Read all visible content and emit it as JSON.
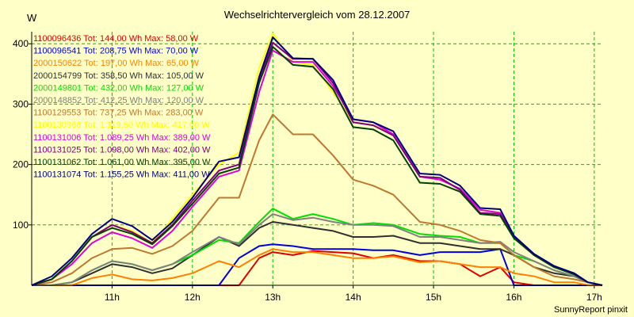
{
  "chart_data": {
    "type": "line",
    "title": "Wechselrichtervergleich vom 28.12.2007",
    "ylabel": "W",
    "footer": "SunnyReport pinxit",
    "ylim": [
      0,
      420
    ],
    "xlim": [
      10.0,
      17.1
    ],
    "x_ticks": [
      {
        "value": 11,
        "label": "11h"
      },
      {
        "value": 12,
        "label": "12h"
      },
      {
        "value": 13,
        "label": "13h"
      },
      {
        "value": 14,
        "label": "14h"
      },
      {
        "value": 15,
        "label": "15h"
      },
      {
        "value": 16,
        "label": "16h"
      },
      {
        "value": 17,
        "label": "17h"
      }
    ],
    "y_ticks": [
      {
        "value": 100,
        "label": "100"
      },
      {
        "value": 200,
        "label": "200"
      },
      {
        "value": 300,
        "label": "300"
      },
      {
        "value": 400,
        "label": "400"
      }
    ],
    "grid": true,
    "legend_position": "top-left",
    "x": [
      10.0,
      10.25,
      10.5,
      10.75,
      11.0,
      11.25,
      11.5,
      11.75,
      12.0,
      12.33,
      12.58,
      12.83,
      13.0,
      13.25,
      13.5,
      13.75,
      14.0,
      14.25,
      14.5,
      14.83,
      15.08,
      15.33,
      15.58,
      15.83,
      16.0,
      16.25,
      16.5,
      16.75,
      16.92,
      17.1
    ],
    "series": [
      {
        "name": "1100096436",
        "label": "1100096436 Tot: 144,00 Wh Max: 58,00 W",
        "color": "#E00000",
        "values": [
          0,
          0,
          0,
          0,
          0,
          0,
          0,
          0,
          0,
          0,
          0,
          45,
          55,
          50,
          57,
          55,
          53,
          45,
          50,
          40,
          40,
          35,
          15,
          30,
          5,
          0,
          0,
          0,
          0,
          0
        ]
      },
      {
        "name": "1100096541",
        "label": "1100096541 Tot: 208,75 Wh Max: 70,00 W",
        "color": "#0000E0",
        "values": [
          0,
          0,
          0,
          0,
          0,
          0,
          0,
          0,
          0,
          0,
          45,
          65,
          68,
          65,
          60,
          60,
          60,
          58,
          58,
          50,
          55,
          55,
          55,
          60,
          0,
          0,
          0,
          0,
          0,
          0
        ]
      },
      {
        "name": "2000150622",
        "label": "2000150622 Tot: 197,00 Wh Max: 65,00 W",
        "color": "#FF8000",
        "values": [
          0,
          0,
          0,
          12,
          18,
          10,
          8,
          12,
          20,
          40,
          30,
          50,
          60,
          55,
          55,
          50,
          45,
          45,
          48,
          38,
          40,
          35,
          30,
          30,
          20,
          15,
          5,
          5,
          0,
          0
        ]
      },
      {
        "name": "2000154799",
        "label": "2000154799 Tot: 358,50 Wh Max: 105,00 W",
        "color": "#303030",
        "values": [
          0,
          0,
          5,
          20,
          35,
          30,
          20,
          28,
          50,
          80,
          65,
          95,
          105,
          100,
          95,
          90,
          80,
          80,
          82,
          70,
          70,
          65,
          60,
          60,
          50,
          30,
          20,
          15,
          5,
          0
        ]
      },
      {
        "name": "2000149801",
        "label": "2000149801 Tot: 432,00 Wh Max: 127,00 W",
        "color": "#00E000",
        "values": [
          0,
          0,
          5,
          25,
          40,
          35,
          25,
          35,
          50,
          75,
          70,
          105,
          127,
          110,
          118,
          110,
          100,
          103,
          100,
          85,
          82,
          80,
          70,
          70,
          50,
          40,
          25,
          15,
          5,
          0
        ]
      },
      {
        "name": "2000148852",
        "label": "2000148852 Tot: 412,25 Wh Max: 120,00 W",
        "color": "#808080",
        "values": [
          0,
          0,
          5,
          25,
          40,
          35,
          25,
          35,
          55,
          80,
          68,
          100,
          118,
          108,
          112,
          105,
          100,
          100,
          98,
          80,
          80,
          75,
          70,
          72,
          55,
          40,
          25,
          15,
          5,
          0
        ]
      },
      {
        "name": "1100129553",
        "label": "1100129553 Tot: 737,25 Wh Max: 283,00 W",
        "color": "#C07830",
        "values": [
          0,
          5,
          20,
          45,
          60,
          62,
          52,
          65,
          90,
          145,
          145,
          240,
          283,
          250,
          250,
          215,
          175,
          165,
          150,
          105,
          100,
          90,
          75,
          70,
          50,
          30,
          15,
          10,
          5,
          0
        ]
      },
      {
        "name": "1100130966",
        "label": "1100130966 Tot: 1.119,50 Wh Max: 417,00 W",
        "color": "#FFFF00",
        "values": [
          0,
          10,
          40,
          80,
          100,
          90,
          70,
          110,
          150,
          200,
          220,
          360,
          417,
          370,
          365,
          320,
          270,
          265,
          250,
          180,
          175,
          160,
          125,
          120,
          80,
          50,
          30,
          20,
          5,
          0
        ]
      },
      {
        "name": "1100131006",
        "label": "1100131006 Tot: 1.089,25 Wh Max: 389,00 W",
        "color": "#E000E0",
        "values": [
          0,
          10,
          35,
          70,
          88,
          78,
          62,
          90,
          130,
          180,
          190,
          320,
          389,
          370,
          370,
          330,
          275,
          270,
          250,
          180,
          175,
          160,
          125,
          120,
          80,
          50,
          30,
          20,
          5,
          0
        ]
      },
      {
        "name": "1100131025",
        "label": "1100131025 Tot: 1.098,00 Wh Max: 402,00 W",
        "color": "#800080",
        "values": [
          0,
          10,
          40,
          80,
          100,
          88,
          70,
          100,
          140,
          190,
          200,
          340,
          402,
          375,
          375,
          335,
          270,
          265,
          248,
          180,
          178,
          158,
          120,
          118,
          80,
          50,
          30,
          20,
          5,
          0
        ]
      },
      {
        "name": "1100131062",
        "label": "1100131062 Tot: 1.061,00 Wh Max: 395,00 W",
        "color": "#004000",
        "values": [
          0,
          10,
          40,
          80,
          95,
          85,
          68,
          98,
          135,
          185,
          195,
          335,
          395,
          365,
          362,
          325,
          262,
          258,
          240,
          170,
          168,
          155,
          118,
          115,
          78,
          50,
          30,
          18,
          5,
          0
        ]
      },
      {
        "name": "1100131074",
        "label": "1100131074 Tot: 1.155,25 Wh Max: 411,00 W",
        "color": "#000080",
        "values": [
          0,
          15,
          45,
          85,
          110,
          98,
          75,
          105,
          145,
          205,
          212,
          345,
          411,
          376,
          375,
          340,
          275,
          270,
          255,
          185,
          183,
          165,
          128,
          126,
          82,
          52,
          32,
          20,
          5,
          0
        ]
      }
    ]
  }
}
